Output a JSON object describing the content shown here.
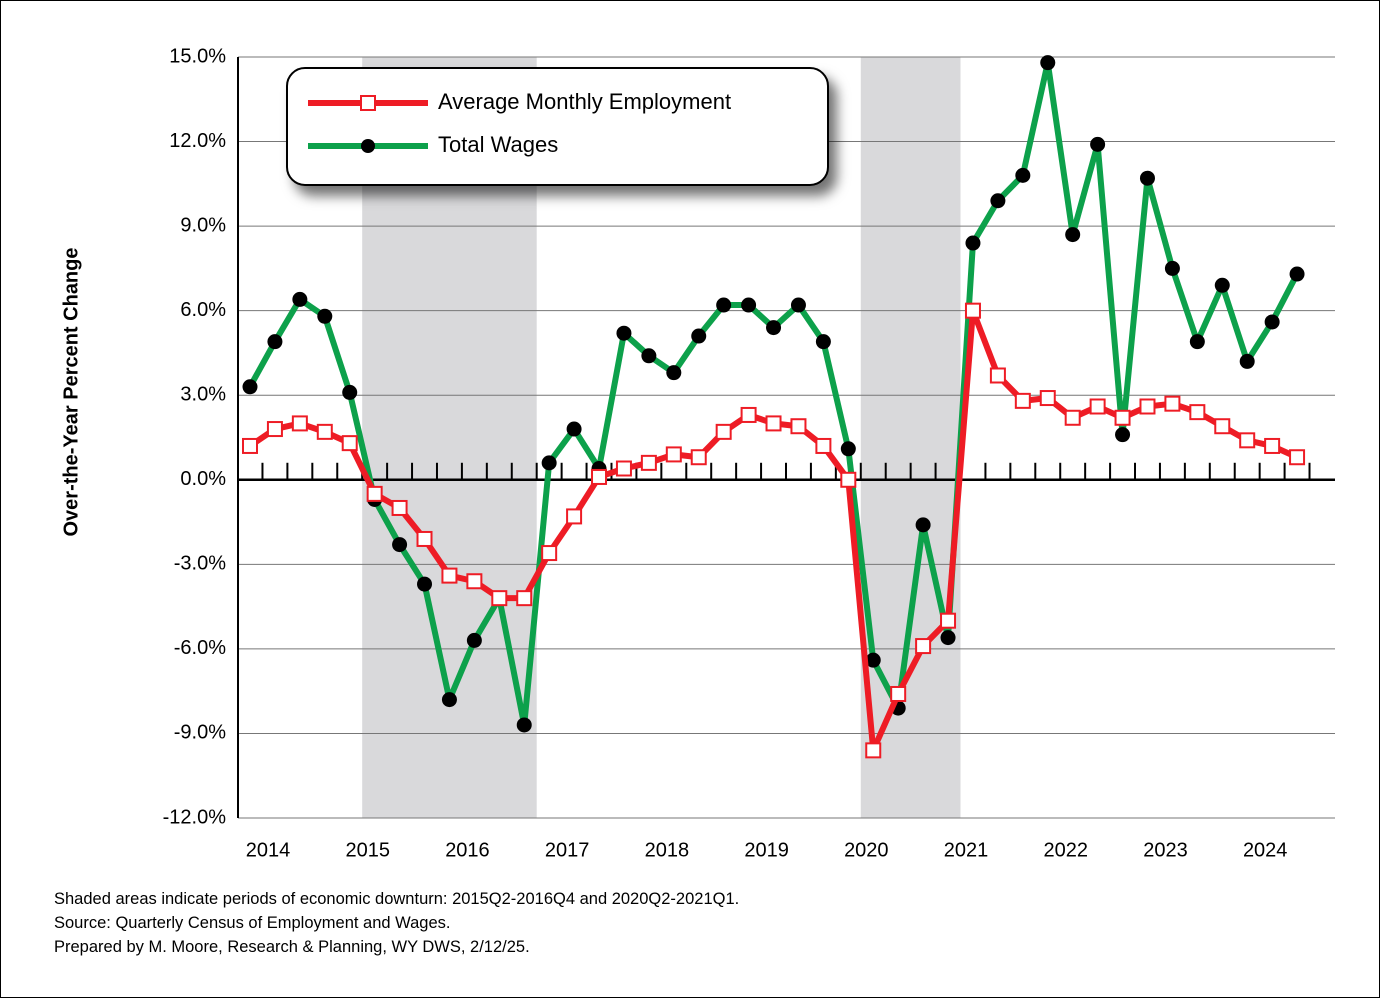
{
  "chart_data": {
    "type": "line",
    "y_label": "Over-the-Year Percent Change",
    "notes": [
      "Shaded areas indicate periods of economic downturn: 2015Q2-2016Q4 and 2020Q2-2021Q1.",
      "Source: Quarterly Census of Employment and Wages.",
      "Prepared by M. Moore, Research & Planning, WY DWS, 2/12/25."
    ],
    "categories": [
      "2014",
      null,
      null,
      null,
      "2015",
      null,
      null,
      null,
      "2016",
      null,
      null,
      null,
      "2017",
      null,
      null,
      null,
      "2018",
      null,
      null,
      null,
      "2019",
      null,
      null,
      null,
      "2020",
      null,
      null,
      null,
      "2021",
      null,
      null,
      null,
      "2022",
      null,
      null,
      null,
      "2023",
      null,
      null,
      null,
      "2024",
      null,
      null
    ],
    "shaded_periods": [
      [
        5,
        11
      ],
      [
        25,
        28
      ]
    ],
    "series": [
      {
        "name": "Total Wages",
        "color": "#0da14b",
        "marker": "circle",
        "values": [
          3.3,
          4.9,
          6.4,
          5.8,
          3.1,
          -0.7,
          -2.3,
          -3.7,
          -7.8,
          -5.7,
          -4.2,
          -8.7,
          0.6,
          1.8,
          0.4,
          5.2,
          4.4,
          3.8,
          5.1,
          6.2,
          6.2,
          5.4,
          6.2,
          4.9,
          1.1,
          -6.4,
          -8.1,
          -1.6,
          -5.6,
          8.4,
          9.9,
          10.8,
          14.8,
          8.7,
          11.9,
          1.6,
          10.7,
          7.5,
          4.9,
          6.9,
          4.2,
          5.6,
          7.3
        ]
      },
      {
        "name": "Average Monthly Employment",
        "color": "#ee1c25",
        "marker": "square",
        "values": [
          1.2,
          1.8,
          2.0,
          1.7,
          1.3,
          -0.5,
          -1.0,
          -2.1,
          -3.4,
          -3.6,
          -4.2,
          -4.2,
          -2.6,
          -1.3,
          0.1,
          0.4,
          0.6,
          0.9,
          0.8,
          1.7,
          2.3,
          2.0,
          1.9,
          1.2,
          0.0,
          -9.6,
          -7.6,
          -5.9,
          -5.0,
          6.0,
          3.7,
          2.8,
          2.9,
          2.2,
          2.6,
          2.2,
          2.6,
          2.7,
          2.4,
          1.9,
          1.4,
          1.2,
          0.8
        ]
      }
    ],
    "legend_order": [
      1,
      0
    ],
    "ylim": [
      -12,
      15
    ],
    "yticks": [
      {
        "value": -12,
        "label": "-12.0%"
      },
      {
        "value": -9,
        "label": "-9.0%"
      },
      {
        "value": -6,
        "label": "-6.0%"
      },
      {
        "value": -3,
        "label": "-3.0%"
      },
      {
        "value": 0,
        "label": "0.0%"
      },
      {
        "value": 3,
        "label": "3.0%"
      },
      {
        "value": 6,
        "label": "6.0%"
      },
      {
        "value": 9,
        "label": "9.0%"
      },
      {
        "value": 12,
        "label": "12.0%"
      },
      {
        "value": 15,
        "label": "15.0%"
      }
    ],
    "grid": true
  }
}
